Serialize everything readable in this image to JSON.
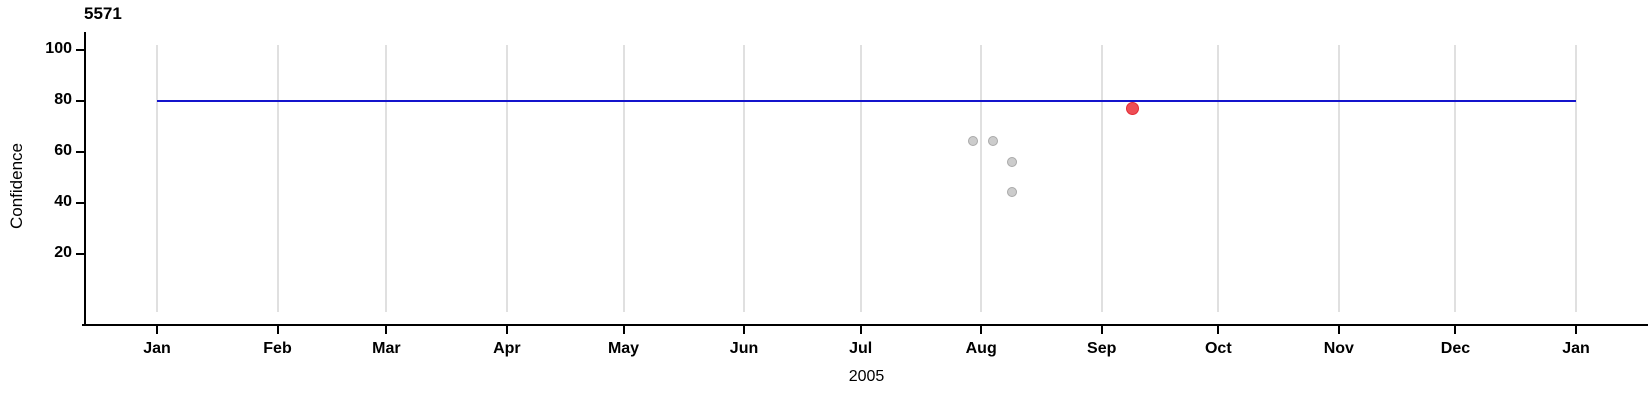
{
  "chart_data": {
    "type": "scatter",
    "title": "5571",
    "xlabel": "2005",
    "ylabel": "Confidence",
    "x_axis": {
      "start_date": "2005-01-01",
      "end_date": "2006-01-01",
      "tick_dates": [
        "2005-01-01",
        "2005-02-01",
        "2005-03-01",
        "2005-04-01",
        "2005-05-01",
        "2005-06-01",
        "2005-07-01",
        "2005-08-01",
        "2005-09-01",
        "2005-10-01",
        "2005-11-01",
        "2005-12-01",
        "2006-01-01"
      ],
      "tick_labels": [
        "Jan",
        "Feb",
        "Mar",
        "Apr",
        "May",
        "Jun",
        "Jul",
        "Aug",
        "Sep",
        "Oct",
        "Nov",
        "Dec",
        "Jan"
      ],
      "grid": true
    },
    "y_axis": {
      "ticks": [
        100,
        80,
        60,
        40,
        20
      ],
      "range": [
        0,
        110
      ],
      "grid": false
    },
    "reference_line": {
      "value": 80,
      "color": "#1414cc"
    },
    "series": [
      {
        "name": "past-observations",
        "marker_fill": "#cccccc",
        "marker_stroke": "#a9a9a9",
        "marker_size": 10,
        "points": [
          {
            "date": "2005-07-30",
            "confidence": 64
          },
          {
            "date": "2005-08-04",
            "confidence": 64
          },
          {
            "date": "2005-08-09",
            "confidence": 56
          },
          {
            "date": "2005-08-09",
            "confidence": 44
          }
        ]
      },
      {
        "name": "current-observation",
        "marker_fill": "#ee4e55",
        "marker_stroke": "#e22c36",
        "marker_size": 13,
        "points": [
          {
            "date": "2005-09-09",
            "confidence": 77
          }
        ]
      }
    ],
    "colors": {
      "gridline": "#e0e0e0",
      "axis": "#000000",
      "text": "#000000",
      "background": "#ffffff"
    },
    "legend": "none"
  }
}
